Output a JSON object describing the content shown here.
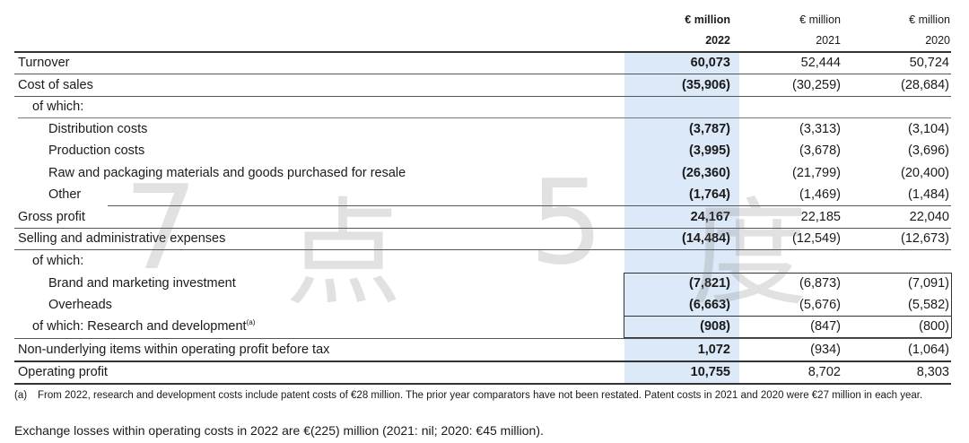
{
  "header": {
    "cols": [
      {
        "unit": "€ million",
        "year": "2022"
      },
      {
        "unit": "€ million",
        "year": "2021"
      },
      {
        "unit": "€ million",
        "year": "2020"
      }
    ]
  },
  "rows": [
    {
      "label": "Turnover",
      "v2022": "60,073",
      "v2021": "52,444",
      "v2020": "50,724"
    },
    {
      "label": "Cost of sales",
      "v2022": "(35,906)",
      "v2021": "(30,259)",
      "v2020": "(28,684)"
    },
    {
      "label": "of which:",
      "v2022": "",
      "v2021": "",
      "v2020": ""
    },
    {
      "label": "Distribution costs",
      "v2022": "(3,787)",
      "v2021": "(3,313)",
      "v2020": "(3,104)"
    },
    {
      "label": "Production costs",
      "v2022": "(3,995)",
      "v2021": "(3,678)",
      "v2020": "(3,696)"
    },
    {
      "label": "Raw and packaging materials and goods purchased for resale",
      "v2022": "(26,360)",
      "v2021": "(21,799)",
      "v2020": "(20,400)"
    },
    {
      "label": "Other",
      "v2022": "(1,764)",
      "v2021": "(1,469)",
      "v2020": "(1,484)"
    },
    {
      "label": "Gross profit",
      "v2022": "24,167",
      "v2021": "22,185",
      "v2020": "22,040"
    },
    {
      "label": "Selling and administrative expenses",
      "v2022": "(14,484)",
      "v2021": "(12,549)",
      "v2020": "(12,673)"
    },
    {
      "label": "of which:",
      "v2022": "",
      "v2021": "",
      "v2020": ""
    },
    {
      "label": "Brand and marketing investment",
      "v2022": "(7,821)",
      "v2021": "(6,873)",
      "v2020": "(7,091)"
    },
    {
      "label": "Overheads",
      "v2022": "(6,663)",
      "v2021": "(5,676)",
      "v2020": "(5,582)"
    },
    {
      "label": "of which: Research and development",
      "sup": "(a)",
      "v2022": "(908)",
      "v2021": "(847)",
      "v2020": "(800)"
    },
    {
      "label": "Non-underlying items within operating profit before tax",
      "v2022": "1,072",
      "v2021": "(934)",
      "v2020": "(1,064)"
    },
    {
      "label": "Operating profit",
      "v2022": "10,755",
      "v2021": "8,702",
      "v2020": "8,303"
    }
  ],
  "footnote": {
    "marker": "(a)",
    "text": "From 2022, research and development costs include patent costs of €28 million. The prior year comparators have not been restated. Patent costs in 2021 and 2020 were €27 million in each year."
  },
  "note": "Exchange losses within operating costs in 2022 are €(225) million (2021: nil; 2020: €45 million).",
  "watermark": [
    "7",
    "点",
    "5",
    "度"
  ]
}
